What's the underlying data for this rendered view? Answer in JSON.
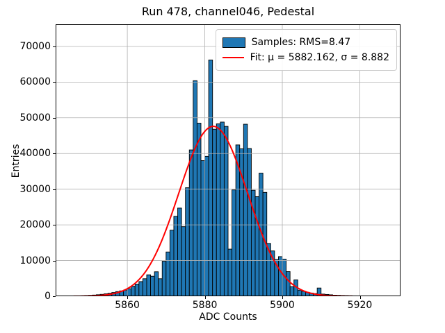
{
  "title": "Run 478, channel046, Pedestal",
  "chart_data": {
    "type": "bar",
    "subtype": "histogram",
    "title": "Run 478, channel046, Pedestal",
    "xlabel": "ADC Counts",
    "ylabel": "Entries",
    "xlim": [
      5841.5,
      5930.5
    ],
    "ylim": [
      0,
      76200
    ],
    "x_ticks": [
      5860,
      5880,
      5900,
      5920
    ],
    "y_ticks": [
      0,
      10000,
      20000,
      30000,
      40000,
      50000,
      60000,
      70000
    ],
    "grid": true,
    "grid_color": "#b0b0b0",
    "bar_color": "#1f77b4",
    "bar_edge_color": "#000000",
    "bin_width": 1,
    "categories": [
      5846,
      5847,
      5848,
      5849,
      5850,
      5851,
      5852,
      5853,
      5854,
      5855,
      5856,
      5857,
      5858,
      5859,
      5860,
      5861,
      5862,
      5863,
      5864,
      5865,
      5866,
      5867,
      5868,
      5869,
      5870,
      5871,
      5872,
      5873,
      5874,
      5875,
      5876,
      5877,
      5878,
      5879,
      5880,
      5881,
      5882,
      5883,
      5884,
      5885,
      5886,
      5887,
      5888,
      5889,
      5890,
      5891,
      5892,
      5893,
      5894,
      5895,
      5896,
      5897,
      5898,
      5899,
      5900,
      5901,
      5902,
      5903,
      5904,
      5905,
      5906,
      5907,
      5908,
      5909,
      5910,
      5911,
      5912,
      5913,
      5914,
      5915,
      5916,
      5917,
      5918,
      5919,
      5920,
      5921,
      5922,
      5923,
      5924
    ],
    "values": [
      60,
      90,
      130,
      180,
      250,
      330,
      420,
      530,
      680,
      850,
      1050,
      1300,
      1500,
      1700,
      2100,
      2800,
      3400,
      4100,
      4900,
      6000,
      5600,
      6850,
      4900,
      9800,
      12400,
      18500,
      22400,
      24700,
      19500,
      30400,
      41000,
      60400,
      48500,
      38000,
      39200,
      66200,
      46800,
      48300,
      48800,
      47600,
      13200,
      29800,
      42400,
      41300,
      48200,
      41400,
      29700,
      27900,
      34500,
      29100,
      14800,
      12700,
      10300,
      11100,
      10400,
      6900,
      2700,
      4600,
      1700,
      1400,
      1100,
      900,
      750,
      2300,
      600,
      500,
      400,
      300,
      250,
      200,
      160,
      130,
      110,
      90,
      80,
      70,
      60,
      50,
      40
    ],
    "fit": {
      "type": "gaussian",
      "mu": 5882.162,
      "sigma": 8.882,
      "amplitude": 47600,
      "color": "#ff0000",
      "x_range": [
        5842,
        5921
      ]
    },
    "legend": {
      "position": "upper right",
      "entries": [
        {
          "swatch": "bar",
          "label": "Samples: RMS=8.47"
        },
        {
          "swatch": "line",
          "label": "Fit: μ = 5882.162, σ = 8.882"
        }
      ]
    }
  }
}
